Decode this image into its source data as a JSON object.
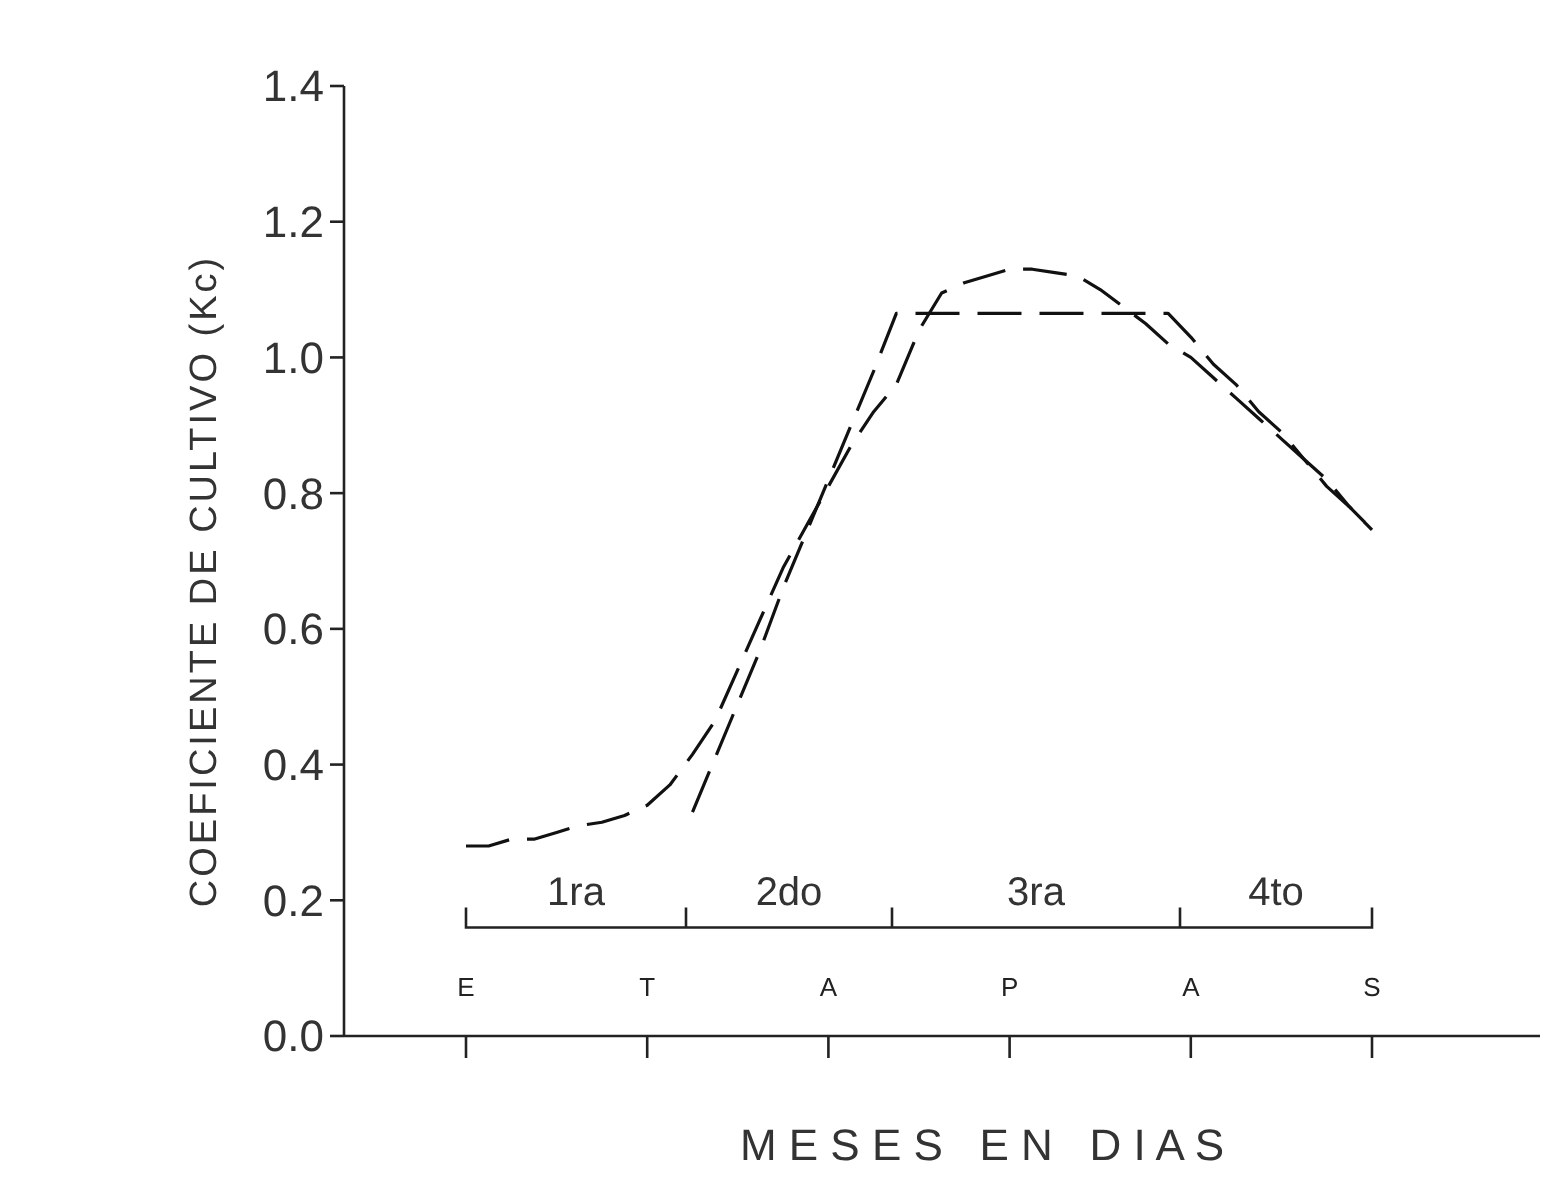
{
  "chart_data": {
    "type": "line",
    "xlabel": "M E S E S   E N   D I A S",
    "ylabel": "COEFICIENTE DE CULTIVO (Kc)",
    "categories": [
      "E",
      null,
      null,
      null,
      null,
      null,
      null,
      null,
      "T",
      null,
      null,
      null,
      null,
      null,
      null,
      null,
      "A",
      null,
      null,
      null,
      null,
      null,
      null,
      null,
      "P",
      null,
      null,
      null,
      null,
      null,
      null,
      null,
      "A",
      null,
      null,
      null,
      null,
      null,
      null,
      null,
      "S"
    ],
    "ylim": [
      0,
      1.4
    ],
    "yticks": [
      {
        "value": 0,
        "label": "0.0"
      },
      {
        "value": 0.2,
        "label": "0.2"
      },
      {
        "value": 0.4,
        "label": "0.4"
      },
      {
        "value": 0.6,
        "label": "0.6"
      },
      {
        "value": 0.8,
        "label": "0.8"
      },
      {
        "value": 1,
        "label": "1.0"
      },
      {
        "value": 1.2,
        "label": "1.2"
      },
      {
        "value": 1.4,
        "label": "1.4"
      }
    ],
    "series": [
      {
        "color": "#111111",
        "values": [
          null,
          null,
          null,
          null,
          null,
          null,
          null,
          null,
          null,
          null,
          0.33,
          0.41,
          0.49,
          0.57,
          0.66,
          0.74,
          0.82,
          0.9,
          0.98,
          1.065,
          1.065,
          1.065,
          1.065,
          1.065,
          1.065,
          1.065,
          1.065,
          1.065,
          1.065,
          1.065,
          1.065,
          1.065,
          1.03,
          0.99,
          0.96,
          0.92,
          0.89,
          0.85,
          0.82,
          0.78,
          0.746
        ]
      },
      {
        "color": "#111111",
        "values": [
          0.28,
          0.28,
          0.29,
          0.29,
          0.3,
          0.31,
          0.315,
          0.325,
          0.34,
          0.37,
          0.415,
          0.465,
          0.54,
          0.615,
          0.69,
          0.75,
          0.81,
          0.87,
          0.92,
          0.96,
          1.04,
          1.095,
          1.11,
          1.12,
          1.13,
          1.13,
          1.125,
          1.12,
          1.1,
          1.075,
          1.05,
          1.02,
          1.0,
          0.97,
          0.94,
          0.91,
          0.88,
          0.85,
          0.81,
          0.78,
          0.746
        ]
      }
    ],
    "annotations": [
      "1ra",
      "2do",
      "3ra",
      "4to"
    ],
    "line_style": "dashed",
    "marker": "none"
  }
}
